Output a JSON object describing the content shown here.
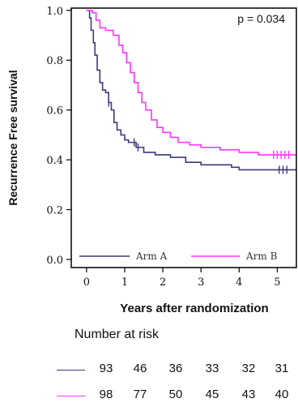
{
  "chart_data": {
    "type": "line",
    "subtype": "kaplan-meier",
    "ylabel": "Recurrence Free survival",
    "xlabel": "Years after randomization",
    "xlim": [
      -0.4,
      5.5
    ],
    "ylim": [
      0.0,
      1.0
    ],
    "x_ticks": [
      "0",
      "1",
      "2",
      "3",
      "4",
      "5"
    ],
    "y_ticks": [
      "0.0",
      "0.2",
      "0.4",
      "0.6",
      "0.8",
      "1.0"
    ],
    "annotation": "p = 0.034",
    "legend_position": "bottom",
    "series": [
      {
        "name": "Arm A",
        "color": "#3a3a7a",
        "points": [
          [
            0,
            1.0
          ],
          [
            0.08,
            0.97
          ],
          [
            0.12,
            0.92
          ],
          [
            0.18,
            0.87
          ],
          [
            0.22,
            0.82
          ],
          [
            0.28,
            0.76
          ],
          [
            0.35,
            0.71
          ],
          [
            0.42,
            0.68
          ],
          [
            0.5,
            0.67
          ],
          [
            0.58,
            0.63
          ],
          [
            0.65,
            0.6
          ],
          [
            0.72,
            0.55
          ],
          [
            0.8,
            0.52
          ],
          [
            0.9,
            0.5
          ],
          [
            1.0,
            0.48
          ],
          [
            1.1,
            0.47
          ],
          [
            1.3,
            0.45
          ],
          [
            1.5,
            0.43
          ],
          [
            1.8,
            0.42
          ],
          [
            2.2,
            0.41
          ],
          [
            2.6,
            0.39
          ],
          [
            3.0,
            0.38
          ],
          [
            3.4,
            0.38
          ],
          [
            3.8,
            0.37
          ],
          [
            4.0,
            0.36
          ],
          [
            5.5,
            0.36
          ]
        ],
        "censor_x": [
          0.58,
          1.25,
          1.35,
          5.05,
          5.15,
          5.25
        ]
      },
      {
        "name": "Arm B",
        "color": "#ff33ff",
        "points": [
          [
            0,
            1.0
          ],
          [
            0.15,
            0.99
          ],
          [
            0.25,
            0.96
          ],
          [
            0.35,
            0.93
          ],
          [
            0.5,
            0.92
          ],
          [
            0.7,
            0.9
          ],
          [
            0.85,
            0.86
          ],
          [
            0.95,
            0.83
          ],
          [
            1.05,
            0.79
          ],
          [
            1.15,
            0.75
          ],
          [
            1.25,
            0.71
          ],
          [
            1.35,
            0.67
          ],
          [
            1.45,
            0.63
          ],
          [
            1.55,
            0.6
          ],
          [
            1.7,
            0.56
          ],
          [
            1.85,
            0.53
          ],
          [
            2.0,
            0.51
          ],
          [
            2.2,
            0.49
          ],
          [
            2.4,
            0.47
          ],
          [
            2.7,
            0.46
          ],
          [
            3.0,
            0.45
          ],
          [
            3.5,
            0.44
          ],
          [
            4.0,
            0.43
          ],
          [
            4.5,
            0.42
          ],
          [
            5.5,
            0.42
          ]
        ],
        "censor_x": [
          4.9,
          5.0,
          5.1,
          5.2,
          5.3
        ]
      }
    ],
    "risk_table": {
      "title": "Number at risk",
      "rows": [
        {
          "series": "Arm A",
          "color": "#3a3a7a",
          "values": [
            "93",
            "46",
            "36",
            "33",
            "32",
            "31"
          ]
        },
        {
          "series": "Arm B",
          "color": "#ff33ff",
          "values": [
            "98",
            "77",
            "50",
            "45",
            "43",
            "40"
          ]
        }
      ]
    }
  }
}
